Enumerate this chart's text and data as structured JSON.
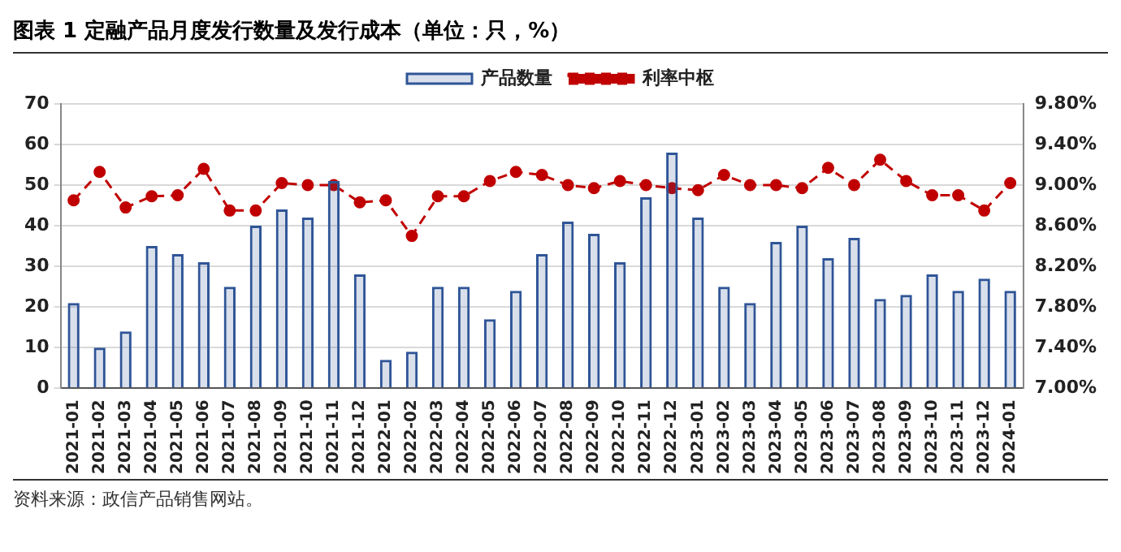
{
  "chart_data": {
    "type": "bar",
    "title": "图表 1  定融产品月度发行数量及发行成本（单位：只，%）",
    "annotations": [
      "资料来源：政信产品销售网站。"
    ],
    "categories": [
      "2021-01",
      "2021-02",
      "2021-03",
      "2021-04",
      "2021-05",
      "2021-06",
      "2021-07",
      "2021-08",
      "2021-09",
      "2021-10",
      "2021-11",
      "2021-12",
      "2022-01",
      "2022-02",
      "2022-03",
      "2022-04",
      "2022-05",
      "2022-06",
      "2022-07",
      "2022-08",
      "2022-09",
      "2022-10",
      "2022-11",
      "2022-12",
      "2023-01",
      "2023-02",
      "2023-03",
      "2023-04",
      "2023-05",
      "2023-06",
      "2023-07",
      "2023-08",
      "2023-09",
      "2023-10",
      "2023-11",
      "2023-12",
      "2024-01"
    ],
    "series": [
      {
        "name": "产品数量",
        "color": "#2f5597",
        "values": [
          21,
          10,
          14,
          35,
          33,
          31,
          25,
          40,
          44,
          42,
          51,
          28,
          7,
          9,
          25,
          25,
          17,
          24,
          33,
          41,
          38,
          31,
          47,
          58,
          42,
          25,
          21,
          36,
          40,
          32,
          37,
          22,
          23,
          28,
          24,
          27,
          24
        ]
      },
      {
        "name": "利率中枢",
        "type": "line",
        "axis": "y2",
        "color": "#c00000",
        "marker": "circle",
        "line_style": "dashed",
        "values": [
          8.85,
          9.13,
          8.78,
          8.89,
          8.9,
          9.16,
          8.75,
          8.75,
          9.02,
          9.0,
          9.0,
          8.83,
          8.85,
          8.5,
          8.89,
          8.89,
          9.04,
          9.13,
          9.1,
          9.0,
          8.97,
          9.04,
          9.0,
          8.97,
          8.95,
          9.1,
          9.0,
          9.0,
          8.97,
          9.17,
          9.0,
          9.25,
          9.04,
          8.9,
          8.9,
          8.75,
          9.02
        ]
      }
    ],
    "ylim": [
      0,
      70
    ],
    "yticks": [
      0,
      10,
      20,
      30,
      40,
      50,
      60,
      70
    ],
    "y2lim": [
      7.0,
      9.8
    ],
    "y2ticks": [
      {
        "value": 7.0,
        "label": "7.00%"
      },
      {
        "value": 7.4,
        "label": "7.40%"
      },
      {
        "value": 7.8,
        "label": "7.80%"
      },
      {
        "value": 8.2,
        "label": "8.20%"
      },
      {
        "value": 8.6,
        "label": "8.60%"
      },
      {
        "value": 9.0,
        "label": "9.00%"
      },
      {
        "value": 9.4,
        "label": "9.40%"
      },
      {
        "value": 9.8,
        "label": "9.80%"
      }
    ],
    "grid": "y",
    "legend": "top"
  }
}
